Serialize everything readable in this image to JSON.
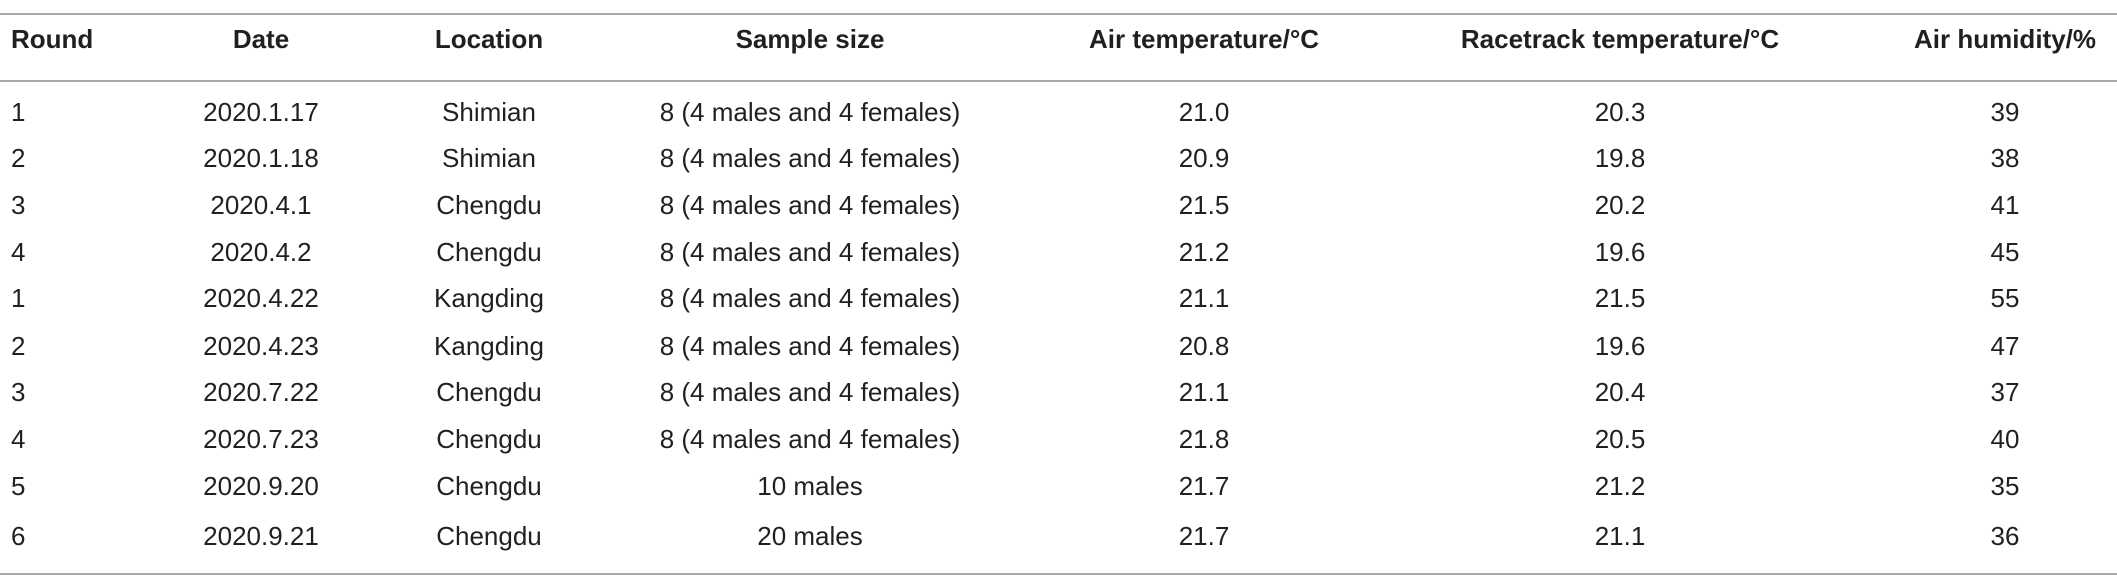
{
  "table": {
    "header": [
      "Round",
      "Date",
      "Location",
      "Sample size",
      "Air temperature/°C",
      "Racetrack temperature/°C",
      "Air humidity/%"
    ],
    "rows": [
      [
        "1",
        "2020.1.17",
        "Shimian",
        "8 (4 males and 4 females)",
        "21.0",
        "20.3",
        "39"
      ],
      [
        "2",
        "2020.1.18",
        "Shimian",
        "8 (4 males and 4 females)",
        "20.9",
        "19.8",
        "38"
      ],
      [
        "3",
        "2020.4.1",
        "Chengdu",
        "8 (4 males and 4 females)",
        "21.5",
        "20.2",
        "41"
      ],
      [
        "4",
        "2020.4.2",
        "Chengdu",
        "8 (4 males and 4 females)",
        "21.2",
        "19.6",
        "45"
      ],
      [
        "1",
        "2020.4.22",
        "Kangding",
        "8 (4 males and 4 females)",
        "21.1",
        "21.5",
        "55"
      ],
      [
        "2",
        "2020.4.23",
        "Kangding",
        "8 (4 males and 4 females)",
        "20.8",
        "19.6",
        "47"
      ],
      [
        "3",
        "2020.7.22",
        "Chengdu",
        "8 (4 males and 4 females)",
        "21.1",
        "20.4",
        "37"
      ],
      [
        "4",
        "2020.7.23",
        "Chengdu",
        "8 (4 males and 4 females)",
        "21.8",
        "20.5",
        "40"
      ],
      [
        "5",
        "2020.9.20",
        "Chengdu",
        "10 males",
        "21.7",
        "21.2",
        "35"
      ],
      [
        "6",
        "2020.9.21",
        "Chengdu",
        "20 males",
        "21.7",
        "21.1",
        "36"
      ]
    ]
  }
}
